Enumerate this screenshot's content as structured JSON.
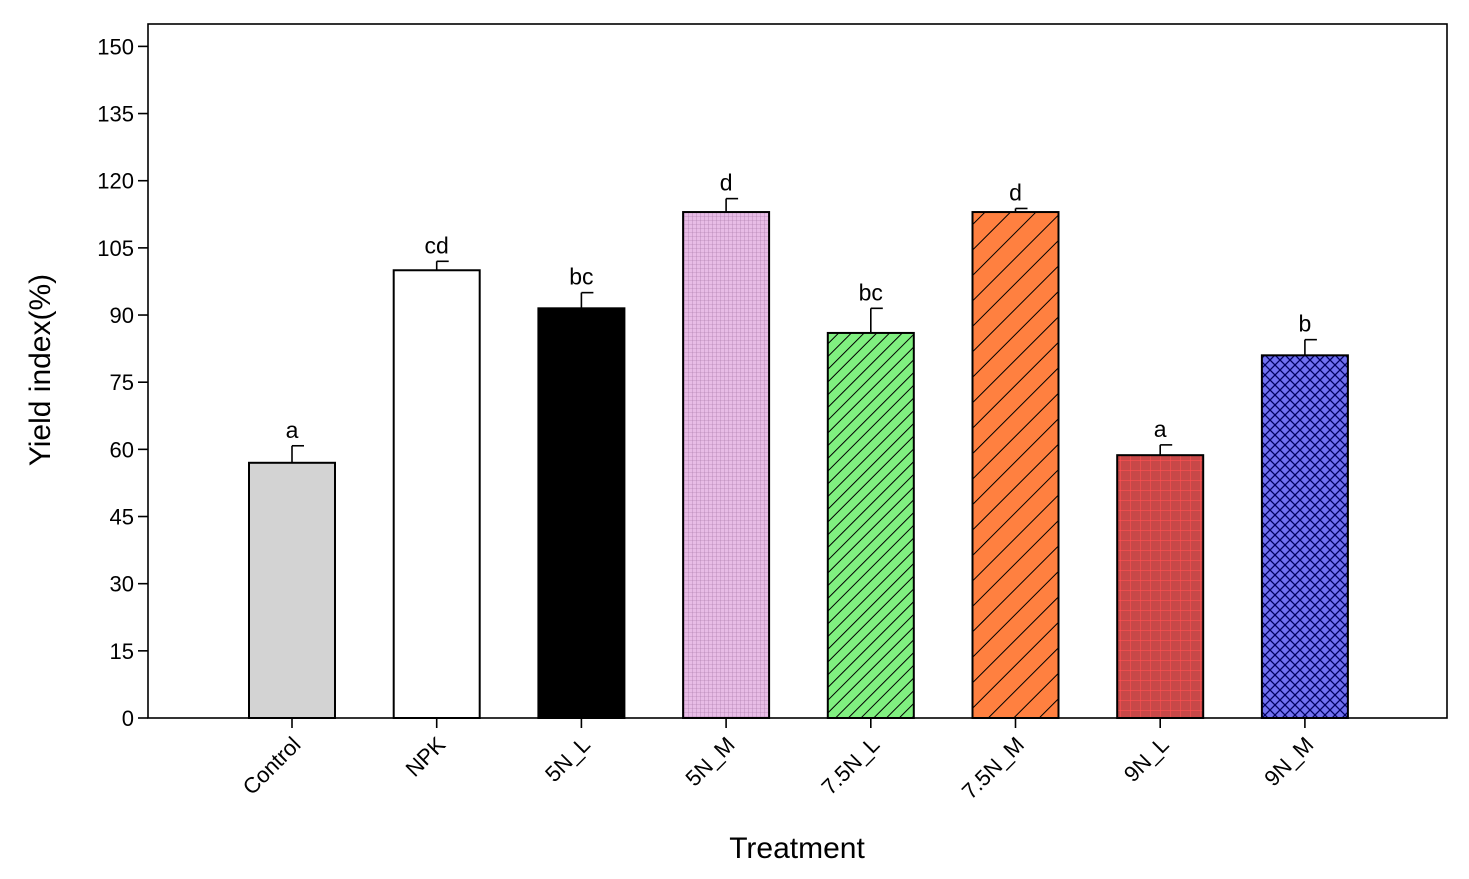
{
  "chart_data": {
    "type": "bar",
    "title": "",
    "xlabel": "Treatment",
    "ylabel": "Yield index(%)",
    "ylim": [
      0,
      155
    ],
    "yticks": [
      0,
      15,
      30,
      45,
      60,
      75,
      90,
      105,
      120,
      135,
      150
    ],
    "grid": false,
    "categories": [
      "Control",
      "NPK",
      "5N_L",
      "5N_M",
      "7.5N_L",
      "7.5N_M",
      "9N_L",
      "9N_M"
    ],
    "values": [
      57,
      100,
      91.5,
      113,
      86,
      113,
      58.7,
      81
    ],
    "errors": [
      3.8,
      2,
      3.5,
      3,
      5.5,
      0.8,
      2.3,
      3.5
    ],
    "significance": [
      "a",
      "cd",
      "bc",
      "d",
      "bc",
      "d",
      "a",
      "b"
    ],
    "colors": [
      "#d3d3d3",
      "#ffffff",
      "#000000",
      "#e8bce6",
      "#80f080",
      "#ff8040",
      "#c84848",
      "#7070f0"
    ],
    "patterns": [
      "solid",
      "solid",
      "solid",
      "fine-grid",
      "diagonal-dense",
      "diagonal",
      "grid",
      "crosshatch"
    ]
  }
}
